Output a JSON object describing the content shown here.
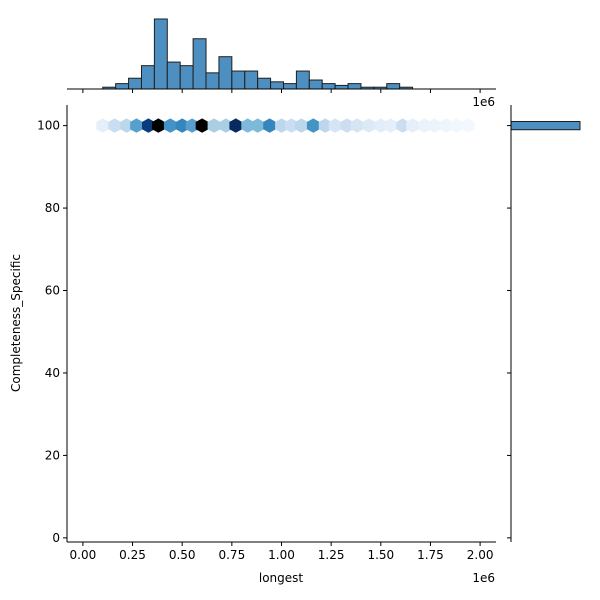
{
  "chart_data": {
    "type": "hexbin-jointplot",
    "xlabel": "longest",
    "ylabel": "Completeness_Specific",
    "x_scale_label": "1e6",
    "top_scale_label": "1e6",
    "xlim": [
      -0.08,
      2.08
    ],
    "ylim": [
      -1,
      105
    ],
    "x_ticks": [
      {
        "value": 0.0,
        "label": "0.00"
      },
      {
        "value": 0.25,
        "label": "0.25"
      },
      {
        "value": 0.5,
        "label": "0.50"
      },
      {
        "value": 0.75,
        "label": "0.75"
      },
      {
        "value": 1.0,
        "label": "1.00"
      },
      {
        "value": 1.25,
        "label": "1.25"
      },
      {
        "value": 1.5,
        "label": "1.50"
      },
      {
        "value": 1.75,
        "label": "1.75"
      },
      {
        "value": 2.0,
        "label": "2.00"
      }
    ],
    "y_ticks": [
      {
        "value": 0,
        "label": "0"
      },
      {
        "value": 20,
        "label": "20"
      },
      {
        "value": 40,
        "label": "40"
      },
      {
        "value": 60,
        "label": "60"
      },
      {
        "value": 80,
        "label": "80"
      },
      {
        "value": 100,
        "label": "100"
      }
    ],
    "hexbins": {
      "y": 100,
      "x_centers": [
        0.1,
        0.16,
        0.22,
        0.27,
        0.33,
        0.38,
        0.44,
        0.5,
        0.55,
        0.6,
        0.66,
        0.72,
        0.77,
        0.83,
        0.88,
        0.94,
        1.0,
        1.05,
        1.1,
        1.16,
        1.22,
        1.27,
        1.33,
        1.38,
        1.44,
        1.5,
        1.55,
        1.61,
        1.66,
        1.72,
        1.77,
        1.83,
        1.88,
        1.94
      ],
      "intensity": [
        0.08,
        0.2,
        0.25,
        0.5,
        0.85,
        1.0,
        0.55,
        0.6,
        0.5,
        1.0,
        0.3,
        0.3,
        0.9,
        0.4,
        0.4,
        0.6,
        0.25,
        0.2,
        0.25,
        0.55,
        0.25,
        0.15,
        0.2,
        0.15,
        0.12,
        0.1,
        0.08,
        0.2,
        0.08,
        0.06,
        0.05,
        0.04,
        0.03,
        0.02
      ]
    },
    "x_histogram": {
      "bin_edges": [
        0.1,
        0.165,
        0.23,
        0.295,
        0.36,
        0.425,
        0.49,
        0.555,
        0.62,
        0.685,
        0.75,
        0.815,
        0.88,
        0.945,
        1.01,
        1.075,
        1.14,
        1.205,
        1.27,
        1.335,
        1.4,
        1.465,
        1.53,
        1.595,
        1.66,
        1.725,
        1.79,
        1.855,
        1.92,
        1.985,
        2.05
      ],
      "counts": [
        1,
        3,
        6,
        13,
        39,
        15,
        13,
        28,
        9,
        18,
        10,
        10,
        6,
        4,
        3,
        10,
        5,
        3,
        2,
        3,
        1,
        1,
        3,
        1,
        0,
        0,
        0,
        0,
        0,
        0
      ],
      "max_count": 39
    },
    "y_histogram": {
      "bin": [
        99,
        101
      ],
      "count": 1,
      "max_count": 1
    }
  }
}
